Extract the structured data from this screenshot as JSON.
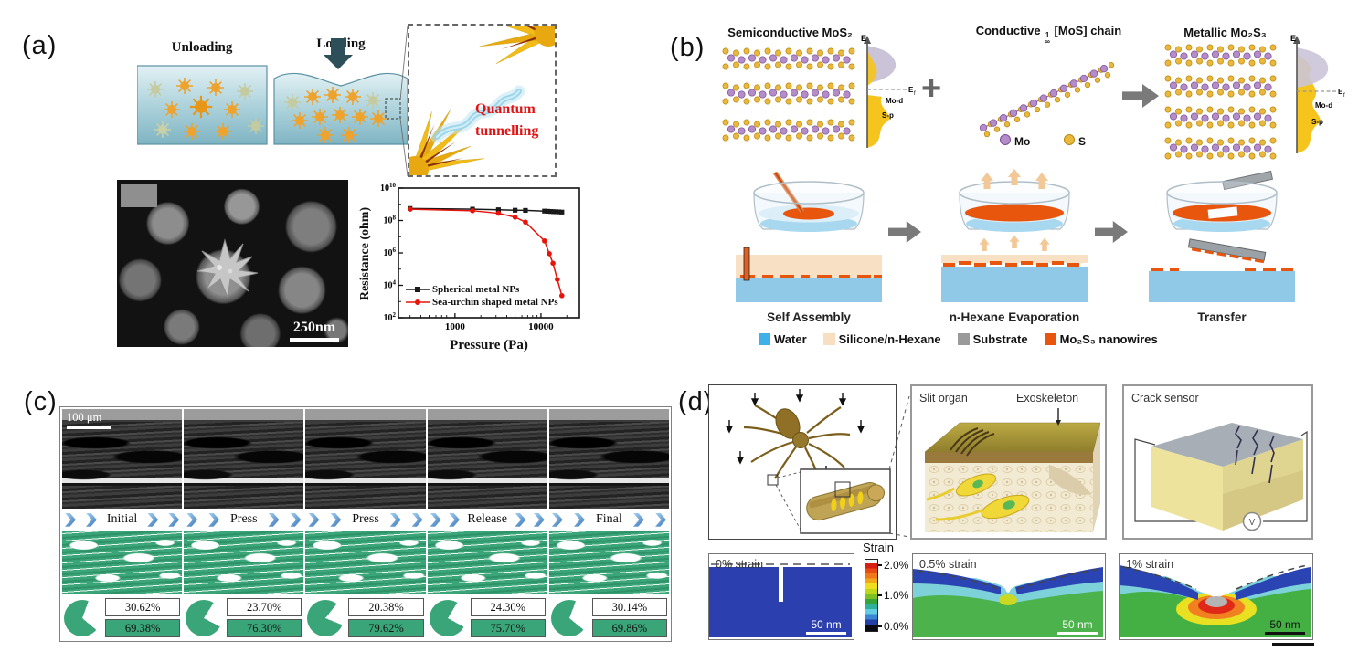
{
  "panels": {
    "a": {
      "label": "(a)",
      "unloading_label": "Unloading",
      "loading_label": "Loading",
      "quantum_line1": "Quantum",
      "quantum_line2": "tunnelling",
      "sem_scale_bar": "250nm",
      "chart": {
        "xlabel": "Pressure (Pa)",
        "ylabel": "Resistance (ohm)"
      }
    },
    "b": {
      "label": "(b)",
      "semiconductive_title": "Semiconductive MoS₂",
      "plus_sign": "+",
      "conductive_prefix": "Conductive",
      "conductive_sup": "1",
      "conductive_inf": "∞",
      "conductive_suffix": "[MoS] chain",
      "metallic_title": "Metallic Mo₂S₃",
      "dos_left": {
        "e": "E",
        "ef_main": "E",
        "ef_sub": "f",
        "mo_d": "Mo-d",
        "s_p": "S-p"
      },
      "dos_right": {
        "e": "E",
        "ef_main": "E",
        "ef_sub": "f",
        "mo_d": "Mo-d",
        "s_p": "S-p"
      },
      "atom_legend": {
        "mo": "Mo",
        "s": "S"
      },
      "stage_labels": [
        "Self Assembly",
        "n-Hexane Evaporation",
        "Transfer"
      ],
      "legend": [
        {
          "label": "Water",
          "color": "#3fb0e8"
        },
        {
          "label": "Silicone/n-Hexane",
          "color": "#f8dfc2"
        },
        {
          "label": "Substrate",
          "color": "#9a9a9a"
        },
        {
          "label": "Mo₂S₃ nanowires",
          "color": "#e8560e"
        }
      ]
    },
    "c": {
      "label": "(c)",
      "scale_bar": "100 μm",
      "green_color": "#3aa578",
      "columns": [
        {
          "stage": "Initial",
          "void_pct": "30.62%",
          "solid_pct": "69.38%"
        },
        {
          "stage": "Press",
          "void_pct": "23.70%",
          "solid_pct": "76.30%"
        },
        {
          "stage": "Press",
          "void_pct": "20.38%",
          "solid_pct": "79.62%"
        },
        {
          "stage": "Release",
          "void_pct": "24.30%",
          "solid_pct": "75.70%"
        },
        {
          "stage": "Final",
          "void_pct": "30.14%",
          "solid_pct": "69.86%"
        }
      ]
    },
    "d": {
      "label": "(d)",
      "slit_organ_label": "Slit organ",
      "exoskeleton_label": "Exoskeleton",
      "crack_sensor_label": "Crack sensor",
      "voltmeter_label": "V",
      "strain_scale": {
        "title": "Strain",
        "tick_top": "2.0%",
        "tick_mid": "1.0%",
        "tick_bottom": "0.0%"
      },
      "strain_maps": [
        {
          "label": "0% strain",
          "scale_bar": "50 nm"
        },
        {
          "label": "0.5% strain",
          "scale_bar": "50 nm"
        },
        {
          "label": "1% strain",
          "scale_bar": "50 nm"
        }
      ]
    }
  },
  "chart_data": {
    "type": "line",
    "title": "",
    "xlabel": "Pressure (Pa)",
    "ylabel": "Resistance (ohm)",
    "x_scale": "log",
    "y_scale": "log",
    "xlim": [
      220,
      28000
    ],
    "ylim": [
      100,
      10000000000
    ],
    "xticks": [
      1000,
      10000
    ],
    "ytick_exponents": [
      2,
      4,
      6,
      8,
      10
    ],
    "grid": false,
    "legend_position": "bottom-left",
    "series": [
      {
        "name": "Spherical metal NPs",
        "color": "#1a1a1a",
        "marker": "square",
        "points": [
          [
            300,
            550000000
          ],
          [
            1600,
            500000000
          ],
          [
            3200,
            460000000
          ],
          [
            5000,
            430000000
          ],
          [
            6600,
            420000000
          ],
          [
            11000,
            380000000
          ],
          [
            12000,
            370000000
          ],
          [
            13000,
            360000000
          ],
          [
            14000,
            350000000
          ],
          [
            15000,
            345000000
          ],
          [
            16200,
            340000000
          ],
          [
            17500,
            330000000
          ]
        ]
      },
      {
        "name": "Sea-urchin shaped metal NPs",
        "color": "#e8140c",
        "marker": "circle",
        "points": [
          [
            300,
            500000000
          ],
          [
            1600,
            400000000
          ],
          [
            3200,
            280000000
          ],
          [
            5000,
            160000000
          ],
          [
            6600,
            80000000
          ],
          [
            11000,
            5500000
          ],
          [
            12500,
            900000
          ],
          [
            13800,
            230000
          ],
          [
            15500,
            23000
          ],
          [
            17500,
            2300
          ]
        ]
      }
    ]
  }
}
